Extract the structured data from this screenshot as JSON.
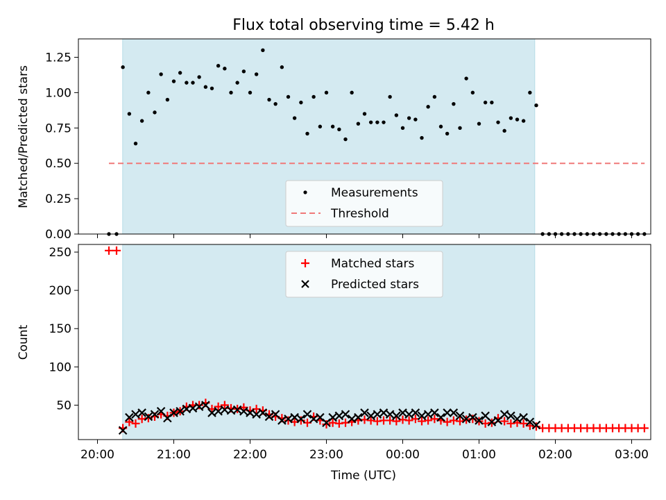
{
  "chart_data": [
    {
      "type": "scatter",
      "title": "Flux total observing time = 5.42 h",
      "xlabel": "",
      "ylabel": "Matched/Predicted stars",
      "xlim": [
        -0.25,
        7.25
      ],
      "ylim": [
        0,
        1.38
      ],
      "yticks": [
        0.0,
        0.25,
        0.5,
        0.75,
        1.0,
        1.25
      ],
      "ytick_labels": [
        "0.00",
        "0.25",
        "0.50",
        "0.75",
        "1.00",
        "1.25"
      ],
      "shaded_x": [
        0.33,
        5.73
      ],
      "grid": false,
      "legend_position": "lower center",
      "series": [
        {
          "name": "Measurements",
          "style": "dot",
          "color": "#000000",
          "x": [
            0.15,
            0.25,
            0.333,
            0.417,
            0.5,
            0.583,
            0.667,
            0.75,
            0.833,
            0.917,
            1.0,
            1.083,
            1.167,
            1.25,
            1.333,
            1.417,
            1.5,
            1.583,
            1.667,
            1.75,
            1.833,
            1.917,
            2.0,
            2.083,
            2.167,
            2.25,
            2.333,
            2.417,
            2.5,
            2.583,
            2.667,
            2.75,
            2.833,
            2.917,
            3.0,
            3.083,
            3.167,
            3.25,
            3.333,
            3.417,
            3.5,
            3.583,
            3.667,
            3.75,
            3.833,
            3.917,
            4.0,
            4.083,
            4.167,
            4.25,
            4.333,
            4.417,
            4.5,
            4.583,
            4.667,
            4.75,
            4.833,
            4.917,
            5.0,
            5.083,
            5.167,
            5.25,
            5.333,
            5.417,
            5.5,
            5.583,
            5.667,
            5.75,
            5.833,
            5.917,
            6.0,
            6.083,
            6.167,
            6.25,
            6.333,
            6.417,
            6.5,
            6.583,
            6.667,
            6.75,
            6.833,
            6.917,
            7.0,
            7.083,
            7.167
          ],
          "y": [
            0.0,
            0.0,
            1.18,
            0.85,
            0.64,
            0.8,
            1.0,
            0.86,
            1.13,
            0.95,
            1.08,
            1.14,
            1.07,
            1.07,
            1.11,
            1.04,
            1.03,
            1.19,
            1.17,
            1.0,
            1.07,
            1.15,
            1.0,
            1.13,
            1.3,
            0.95,
            0.92,
            1.18,
            0.97,
            0.82,
            0.93,
            0.71,
            0.97,
            0.76,
            1.0,
            0.76,
            0.74,
            0.67,
            1.0,
            0.78,
            0.85,
            0.79,
            0.79,
            0.79,
            0.97,
            0.84,
            0.75,
            0.82,
            0.81,
            0.68,
            0.9,
            0.97,
            0.76,
            0.71,
            0.92,
            0.75,
            1.1,
            1.0,
            0.78,
            0.93,
            0.93,
            0.79,
            0.73,
            0.82,
            0.81,
            0.8,
            1.0,
            0.91,
            0.0,
            0.0,
            0.0,
            0.0,
            0.0,
            0.0,
            0.0,
            0.0,
            0.0,
            0.0,
            0.0,
            0.0,
            0.0,
            0.0,
            0.0,
            0.0,
            0.0
          ]
        },
        {
          "name": "Threshold",
          "style": "dashed",
          "color": "#f07878",
          "x": [
            0.15,
            7.17
          ],
          "y": [
            0.5,
            0.5
          ]
        }
      ]
    },
    {
      "type": "scatter",
      "title": "",
      "xlabel": "Time (UTC)",
      "ylabel": "Count",
      "xlim": [
        -0.25,
        7.25
      ],
      "ylim": [
        5,
        260
      ],
      "yticks": [
        50,
        100,
        150,
        200,
        250
      ],
      "ytick_labels": [
        "50",
        "100",
        "150",
        "200",
        "250"
      ],
      "xticks": [
        0,
        1,
        2,
        3,
        4,
        5,
        6,
        7
      ],
      "xtick_labels": [
        "20:00",
        "21:00",
        "22:00",
        "23:00",
        "00:00",
        "01:00",
        "02:00",
        "03:00"
      ],
      "shaded_x": [
        0.33,
        5.73
      ],
      "grid": false,
      "legend_position": "upper center",
      "series": [
        {
          "name": "Matched stars",
          "style": "plus",
          "color": "#ff0000",
          "x": [
            0.15,
            0.25,
            0.333,
            0.417,
            0.5,
            0.583,
            0.667,
            0.75,
            0.833,
            0.917,
            1.0,
            1.083,
            1.167,
            1.25,
            1.333,
            1.417,
            1.5,
            1.583,
            1.667,
            1.75,
            1.833,
            1.917,
            2.0,
            2.083,
            2.167,
            2.25,
            2.333,
            2.417,
            2.5,
            2.583,
            2.667,
            2.75,
            2.833,
            2.917,
            3.0,
            3.083,
            3.167,
            3.25,
            3.333,
            3.417,
            3.5,
            3.583,
            3.667,
            3.75,
            3.833,
            3.917,
            4.0,
            4.083,
            4.167,
            4.25,
            4.333,
            4.417,
            4.5,
            4.583,
            4.667,
            4.75,
            4.833,
            4.917,
            5.0,
            5.083,
            5.167,
            5.25,
            5.333,
            5.417,
            5.5,
            5.583,
            5.667,
            5.75,
            5.833,
            5.917,
            6.0,
            6.083,
            6.167,
            6.25,
            6.333,
            6.417,
            6.5,
            6.583,
            6.667,
            6.75,
            6.833,
            6.917,
            7.0,
            7.083,
            7.167
          ],
          "y": [
            252,
            252,
            20,
            28,
            26,
            32,
            33,
            35,
            38,
            36,
            40,
            42,
            48,
            50,
            50,
            53,
            45,
            48,
            50,
            46,
            45,
            47,
            43,
            45,
            43,
            38,
            35,
            33,
            30,
            28,
            30,
            27,
            35,
            30,
            25,
            27,
            26,
            27,
            28,
            30,
            31,
            30,
            29,
            30,
            30,
            29,
            31,
            30,
            32,
            29,
            30,
            32,
            30,
            28,
            30,
            29,
            31,
            32,
            29,
            26,
            27,
            33,
            29,
            26,
            27,
            26,
            23,
            22,
            20,
            20,
            20,
            20,
            20,
            20,
            20,
            20,
            20,
            20,
            20,
            20,
            20,
            20,
            20,
            20,
            20
          ]
        },
        {
          "name": "Predicted stars",
          "style": "x",
          "color": "#000000",
          "x": [
            0.333,
            0.417,
            0.5,
            0.583,
            0.667,
            0.75,
            0.833,
            0.917,
            1.0,
            1.083,
            1.167,
            1.25,
            1.333,
            1.417,
            1.5,
            1.583,
            1.667,
            1.75,
            1.833,
            1.917,
            2.0,
            2.083,
            2.167,
            2.25,
            2.333,
            2.417,
            2.5,
            2.583,
            2.667,
            2.75,
            2.833,
            2.917,
            3.0,
            3.083,
            3.167,
            3.25,
            3.333,
            3.417,
            3.5,
            3.583,
            3.667,
            3.75,
            3.833,
            3.917,
            4.0,
            4.083,
            4.167,
            4.25,
            4.333,
            4.417,
            4.5,
            4.583,
            4.667,
            4.75,
            4.833,
            4.917,
            5.0,
            5.083,
            5.167,
            5.25,
            5.333,
            5.417,
            5.5,
            5.583,
            5.667,
            5.75
          ],
          "y": [
            17,
            34,
            38,
            40,
            35,
            38,
            42,
            33,
            40,
            42,
            45,
            46,
            48,
            50,
            40,
            42,
            44,
            43,
            44,
            42,
            40,
            38,
            40,
            35,
            38,
            30,
            32,
            34,
            32,
            38,
            32,
            34,
            27,
            34,
            36,
            38,
            32,
            34,
            40,
            36,
            38,
            40,
            38,
            36,
            40,
            38,
            40,
            36,
            38,
            40,
            34,
            40,
            40,
            36,
            32,
            34,
            30,
            36,
            28,
            30,
            38,
            36,
            32,
            34,
            28,
            24
          ]
        }
      ]
    }
  ]
}
